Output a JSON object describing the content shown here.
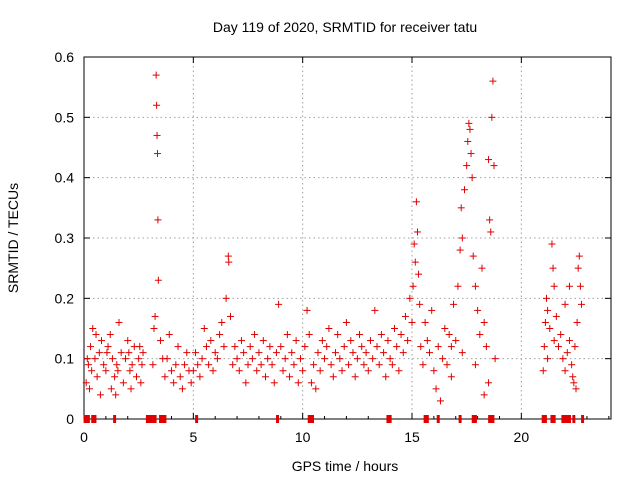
{
  "chart_data": {
    "type": "scatter",
    "title": "Day 119 of 2020, SRMTID for receiver tatu",
    "xlabel": "GPS time / hours",
    "ylabel": "SRMTID / TECUs",
    "xlim": [
      0,
      24.1
    ],
    "ylim": [
      0,
      0.6
    ],
    "xticks": [
      0,
      5,
      10,
      15,
      20
    ],
    "xtick_labels": [
      "0",
      "5",
      "10",
      "15",
      "20"
    ],
    "yticks": [
      0,
      0.1,
      0.2,
      0.3,
      0.4,
      0.5,
      0.6
    ],
    "ytick_labels": [
      "0",
      "0.1",
      "0.2",
      "0.3",
      "0.4",
      "0.5",
      "0.6"
    ],
    "grid": true,
    "legend": "none",
    "marker": "plus",
    "series": [
      {
        "name": "SRMTID",
        "color": "#e00000",
        "points": [
          [
            0.1,
            0.06
          ],
          [
            0.2,
            0.09
          ],
          [
            0.3,
            0.12
          ],
          [
            0.35,
            0.08
          ],
          [
            0.4,
            0.15
          ],
          [
            0.5,
            0.1
          ],
          [
            0.6,
            0.07
          ],
          [
            0.7,
            0.11
          ],
          [
            0.8,
            0.13
          ],
          [
            0.9,
            0.09
          ],
          [
            1.0,
            0.08
          ],
          [
            1.1,
            0.12
          ],
          [
            1.2,
            0.14
          ],
          [
            1.3,
            0.1
          ],
          [
            1.4,
            0.07
          ],
          [
            1.5,
            0.09
          ],
          [
            1.6,
            0.16
          ],
          [
            1.7,
            0.11
          ],
          [
            1.8,
            0.06
          ],
          [
            1.9,
            0.1
          ],
          [
            2.0,
            0.13
          ],
          [
            2.1,
            0.08
          ],
          [
            2.2,
            0.09
          ],
          [
            2.3,
            0.12
          ],
          [
            2.4,
            0.07
          ],
          [
            2.5,
            0.1
          ],
          [
            2.6,
            0.06
          ],
          [
            2.7,
            0.11
          ],
          [
            0.25,
            0.05
          ],
          [
            0.75,
            0.04
          ],
          [
            1.25,
            0.05
          ],
          [
            1.45,
            0.04
          ],
          [
            2.15,
            0.05
          ],
          [
            2.55,
            0.12
          ],
          [
            0.15,
            0.1
          ],
          [
            0.55,
            0.14
          ],
          [
            1.05,
            0.11
          ],
          [
            1.55,
            0.08
          ],
          [
            2.05,
            0.11
          ],
          [
            2.65,
            0.09
          ],
          [
            3.15,
            0.09
          ],
          [
            3.2,
            0.15
          ],
          [
            3.25,
            0.17
          ],
          [
            3.3,
            0.57
          ],
          [
            3.32,
            0.52
          ],
          [
            3.34,
            0.47
          ],
          [
            3.36,
            0.44
          ],
          [
            3.38,
            0.33
          ],
          [
            3.4,
            0.23
          ],
          [
            3.5,
            0.13
          ],
          [
            3.6,
            0.1
          ],
          [
            3.7,
            0.07
          ],
          [
            3.8,
            0.1
          ],
          [
            3.9,
            0.14
          ],
          [
            4.0,
            0.08
          ],
          [
            4.1,
            0.06
          ],
          [
            4.2,
            0.09
          ],
          [
            4.3,
            0.12
          ],
          [
            4.4,
            0.07
          ],
          [
            4.5,
            0.05
          ],
          [
            4.6,
            0.09
          ],
          [
            4.7,
            0.11
          ],
          [
            4.8,
            0.08
          ],
          [
            4.9,
            0.06
          ],
          [
            5.0,
            0.08
          ],
          [
            5.1,
            0.11
          ],
          [
            5.2,
            0.09
          ],
          [
            5.3,
            0.07
          ],
          [
            5.4,
            0.1
          ],
          [
            5.5,
            0.15
          ],
          [
            5.6,
            0.12
          ],
          [
            5.7,
            0.09
          ],
          [
            5.8,
            0.13
          ],
          [
            5.9,
            0.08
          ],
          [
            6.0,
            0.11
          ],
          [
            6.1,
            0.1
          ],
          [
            6.2,
            0.14
          ],
          [
            6.3,
            0.16
          ],
          [
            6.4,
            0.12
          ],
          [
            6.5,
            0.2
          ],
          [
            6.6,
            0.27
          ],
          [
            6.62,
            0.26
          ],
          [
            6.7,
            0.17
          ],
          [
            6.8,
            0.09
          ],
          [
            6.9,
            0.12
          ],
          [
            7.0,
            0.1
          ],
          [
            7.1,
            0.08
          ],
          [
            7.2,
            0.13
          ],
          [
            7.3,
            0.11
          ],
          [
            7.4,
            0.06
          ],
          [
            7.5,
            0.09
          ],
          [
            7.6,
            0.12
          ],
          [
            7.7,
            0.1
          ],
          [
            7.8,
            0.14
          ],
          [
            7.9,
            0.08
          ],
          [
            8.0,
            0.11
          ],
          [
            8.1,
            0.09
          ],
          [
            8.2,
            0.13
          ],
          [
            8.3,
            0.07
          ],
          [
            8.4,
            0.1
          ],
          [
            8.5,
            0.12
          ],
          [
            8.6,
            0.09
          ],
          [
            8.7,
            0.06
          ],
          [
            8.8,
            0.11
          ],
          [
            8.9,
            0.19
          ],
          [
            9.0,
            0.12
          ],
          [
            9.1,
            0.08
          ],
          [
            9.2,
            0.1
          ],
          [
            9.3,
            0.14
          ],
          [
            9.4,
            0.07
          ],
          [
            9.5,
            0.11
          ],
          [
            9.6,
            0.09
          ],
          [
            9.7,
            0.13
          ],
          [
            9.8,
            0.06
          ],
          [
            9.9,
            0.1
          ],
          [
            10.0,
            0.08
          ],
          [
            10.1,
            0.12
          ],
          [
            10.2,
            0.18
          ],
          [
            10.3,
            0.14
          ],
          [
            10.4,
            0.06
          ],
          [
            10.5,
            0.09
          ],
          [
            10.6,
            0.05
          ],
          [
            10.7,
            0.11
          ],
          [
            10.8,
            0.08
          ],
          [
            10.9,
            0.13
          ],
          [
            11.0,
            0.1
          ],
          [
            11.1,
            0.12
          ],
          [
            11.2,
            0.15
          ],
          [
            11.3,
            0.09
          ],
          [
            11.4,
            0.07
          ],
          [
            11.5,
            0.11
          ],
          [
            11.6,
            0.14
          ],
          [
            11.7,
            0.1
          ],
          [
            11.8,
            0.08
          ],
          [
            11.9,
            0.12
          ],
          [
            12.0,
            0.16
          ],
          [
            12.1,
            0.09
          ],
          [
            12.2,
            0.13
          ],
          [
            12.3,
            0.11
          ],
          [
            12.4,
            0.07
          ],
          [
            12.5,
            0.1
          ],
          [
            12.6,
            0.14
          ],
          [
            12.7,
            0.12
          ],
          [
            12.8,
            0.09
          ],
          [
            12.9,
            0.11
          ],
          [
            13.0,
            0.08
          ],
          [
            13.1,
            0.13
          ],
          [
            13.2,
            0.1
          ],
          [
            13.3,
            0.18
          ],
          [
            13.4,
            0.12
          ],
          [
            13.5,
            0.09
          ],
          [
            13.6,
            0.14
          ],
          [
            13.7,
            0.11
          ],
          [
            13.8,
            0.07
          ],
          [
            13.9,
            0.13
          ],
          [
            14.0,
            0.1
          ],
          [
            14.1,
            0.09
          ],
          [
            14.2,
            0.15
          ],
          [
            14.3,
            0.12
          ],
          [
            14.4,
            0.08
          ],
          [
            14.5,
            0.14
          ],
          [
            14.6,
            0.11
          ],
          [
            14.7,
            0.17
          ],
          [
            14.8,
            0.13
          ],
          [
            14.9,
            0.2
          ],
          [
            15.0,
            0.16
          ],
          [
            15.05,
            0.22
          ],
          [
            15.1,
            0.29
          ],
          [
            15.15,
            0.26
          ],
          [
            15.2,
            0.36
          ],
          [
            15.25,
            0.31
          ],
          [
            15.3,
            0.24
          ],
          [
            15.35,
            0.19
          ],
          [
            15.4,
            0.12
          ],
          [
            15.5,
            0.09
          ],
          [
            15.6,
            0.16
          ],
          [
            15.7,
            0.13
          ],
          [
            15.8,
            0.11
          ],
          [
            15.9,
            0.18
          ],
          [
            16.0,
            0.08
          ],
          [
            16.1,
            0.05
          ],
          [
            16.2,
            0.12
          ],
          [
            16.3,
            0.03
          ],
          [
            16.4,
            0.1
          ],
          [
            16.5,
            0.15
          ],
          [
            16.6,
            0.09
          ],
          [
            16.7,
            0.14
          ],
          [
            16.8,
            0.12
          ],
          [
            16.9,
            0.19
          ],
          [
            17.0,
            0.13
          ],
          [
            17.1,
            0.22
          ],
          [
            17.2,
            0.28
          ],
          [
            17.25,
            0.35
          ],
          [
            17.3,
            0.3
          ],
          [
            17.4,
            0.38
          ],
          [
            17.5,
            0.42
          ],
          [
            17.55,
            0.46
          ],
          [
            17.6,
            0.49
          ],
          [
            17.65,
            0.48
          ],
          [
            17.7,
            0.44
          ],
          [
            17.75,
            0.4
          ],
          [
            17.8,
            0.27
          ],
          [
            17.9,
            0.22
          ],
          [
            18.0,
            0.18
          ],
          [
            18.1,
            0.14
          ],
          [
            18.2,
            0.25
          ],
          [
            18.3,
            0.16
          ],
          [
            18.4,
            0.12
          ],
          [
            18.5,
            0.43
          ],
          [
            18.55,
            0.33
          ],
          [
            18.6,
            0.31
          ],
          [
            18.65,
            0.5
          ],
          [
            18.7,
            0.56
          ],
          [
            18.75,
            0.42
          ],
          [
            18.8,
            0.1
          ],
          [
            18.5,
            0.06
          ],
          [
            18.3,
            0.04
          ],
          [
            17.9,
            0.09
          ],
          [
            16.8,
            0.07
          ],
          [
            17.3,
            0.11
          ],
          [
            21.0,
            0.08
          ],
          [
            21.05,
            0.12
          ],
          [
            21.1,
            0.16
          ],
          [
            21.15,
            0.2
          ],
          [
            21.2,
            0.18
          ],
          [
            21.3,
            0.15
          ],
          [
            21.4,
            0.29
          ],
          [
            21.45,
            0.25
          ],
          [
            21.5,
            0.22
          ],
          [
            21.6,
            0.17
          ],
          [
            21.7,
            0.12
          ],
          [
            21.8,
            0.14
          ],
          [
            21.9,
            0.1
          ],
          [
            22.0,
            0.08
          ],
          [
            22.1,
            0.11
          ],
          [
            22.2,
            0.13
          ],
          [
            22.3,
            0.09
          ],
          [
            22.35,
            0.07
          ],
          [
            22.4,
            0.06
          ],
          [
            22.5,
            0.05
          ],
          [
            22.55,
            0.16
          ],
          [
            22.6,
            0.25
          ],
          [
            22.65,
            0.27
          ],
          [
            22.7,
            0.22
          ],
          [
            22.75,
            0.19
          ],
          [
            22.2,
            0.22
          ],
          [
            22.0,
            0.19
          ],
          [
            21.5,
            0.13
          ],
          [
            21.2,
            0.1
          ],
          [
            22.45,
            0.12
          ]
        ]
      }
    ],
    "outages": [
      0.05,
      0.1,
      0.15,
      0.2,
      0.4,
      0.5,
      1.4,
      2.9,
      3.0,
      3.1,
      3.15,
      3.25,
      3.5,
      3.6,
      3.7,
      5.15,
      8.85,
      10.3,
      10.4,
      10.45,
      13.9,
      14.0,
      15.6,
      15.7,
      16.2,
      17.2,
      17.8,
      17.9,
      18.55,
      18.65,
      18.7,
      21.0,
      21.1,
      21.4,
      21.5,
      21.9,
      22.0,
      22.1,
      22.2,
      22.4,
      22.8
    ]
  }
}
